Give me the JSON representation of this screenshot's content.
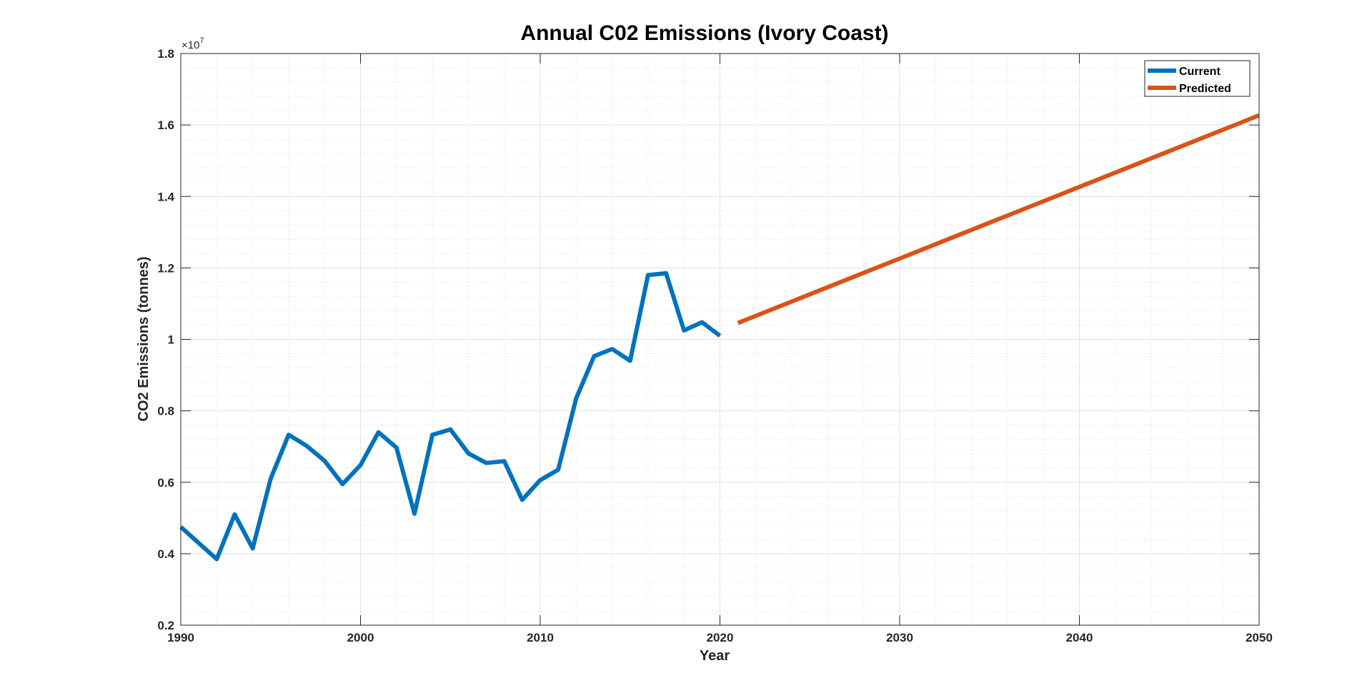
{
  "chart_data": {
    "type": "line",
    "title": "Annual C02 Emissions (Ivory Coast)",
    "xlabel": "Year",
    "ylabel": "CO2 Emissions (tonnes)",
    "y_exponent_label": "×10",
    "y_exponent_power": "7",
    "y_multiplier": 10000000,
    "xlim": [
      1990,
      2050
    ],
    "ylim": [
      0.2,
      1.8
    ],
    "xticks": [
      1990,
      2000,
      2010,
      2020,
      2030,
      2040,
      2050
    ],
    "xtick_labels": [
      "1990",
      "2000",
      "2010",
      "2020",
      "2030",
      "2040",
      "2050"
    ],
    "yticks": [
      0.2,
      0.4,
      0.6,
      0.8,
      1.0,
      1.2,
      1.4,
      1.6,
      1.8
    ],
    "ytick_labels": [
      "0.2",
      "0.4",
      "0.6",
      "0.8",
      "1",
      "1.2",
      "1.4",
      "1.6",
      "1.8"
    ],
    "grid": true,
    "minor_grid": true,
    "legend_position": "top-right",
    "series": [
      {
        "name": "Current",
        "color": "#0072BD",
        "x": [
          1990,
          1991,
          1992,
          1993,
          1994,
          1995,
          1996,
          1997,
          1998,
          1999,
          2000,
          2001,
          2002,
          2003,
          2004,
          2005,
          2006,
          2007,
          2008,
          2009,
          2010,
          2011,
          2012,
          2013,
          2014,
          2015,
          2016,
          2017,
          2018,
          2019,
          2020
        ],
        "values": [
          0.475,
          0.43,
          0.385,
          0.51,
          0.415,
          0.61,
          0.733,
          0.702,
          0.66,
          0.595,
          0.648,
          0.74,
          0.697,
          0.512,
          0.733,
          0.748,
          0.681,
          0.654,
          0.659,
          0.551,
          0.606,
          0.635,
          0.835,
          0.953,
          0.973,
          0.94,
          1.18,
          1.185,
          1.025,
          1.048,
          1.01
        ]
      },
      {
        "name": "Predicted",
        "color": "#D95319",
        "x": [
          2021,
          2050
        ],
        "values": [
          1.046,
          1.627
        ]
      }
    ]
  }
}
